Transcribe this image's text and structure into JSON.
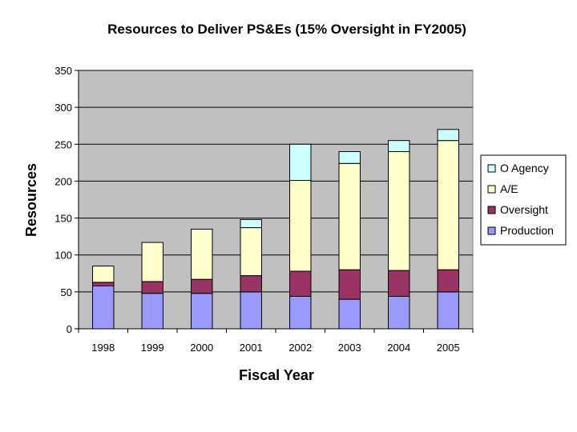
{
  "chart_data": {
    "type": "bar",
    "stacked": true,
    "title": "Resources to Deliver PS&Es (15% Oversight in FY2005)",
    "xlabel": "Fiscal Year",
    "ylabel": "Resources",
    "ylim": [
      0,
      350
    ],
    "yticks": [
      0,
      50,
      100,
      150,
      200,
      250,
      300,
      350
    ],
    "grid": true,
    "legend_position": "right",
    "categories": [
      "1998",
      "1999",
      "2000",
      "2001",
      "2002",
      "2003",
      "2004",
      "2005"
    ],
    "series": [
      {
        "name": "Production",
        "color": "#9999ff",
        "values": [
          58,
          48,
          48,
          50,
          44,
          40,
          44,
          50
        ]
      },
      {
        "name": "Oversight",
        "color": "#993366",
        "values": [
          5,
          16,
          19,
          22,
          34,
          40,
          35,
          30
        ]
      },
      {
        "name": "A/E",
        "color": "#ffffcc",
        "values": [
          22,
          53,
          68,
          65,
          123,
          144,
          161,
          175
        ]
      },
      {
        "name": "O Agency",
        "color": "#ccffff",
        "values": [
          0,
          0,
          0,
          11,
          49,
          16,
          15,
          15
        ]
      }
    ],
    "legend_order": [
      "O Agency",
      "A/E",
      "Oversight",
      "Production"
    ],
    "plot_background": "#c0c0c0"
  }
}
